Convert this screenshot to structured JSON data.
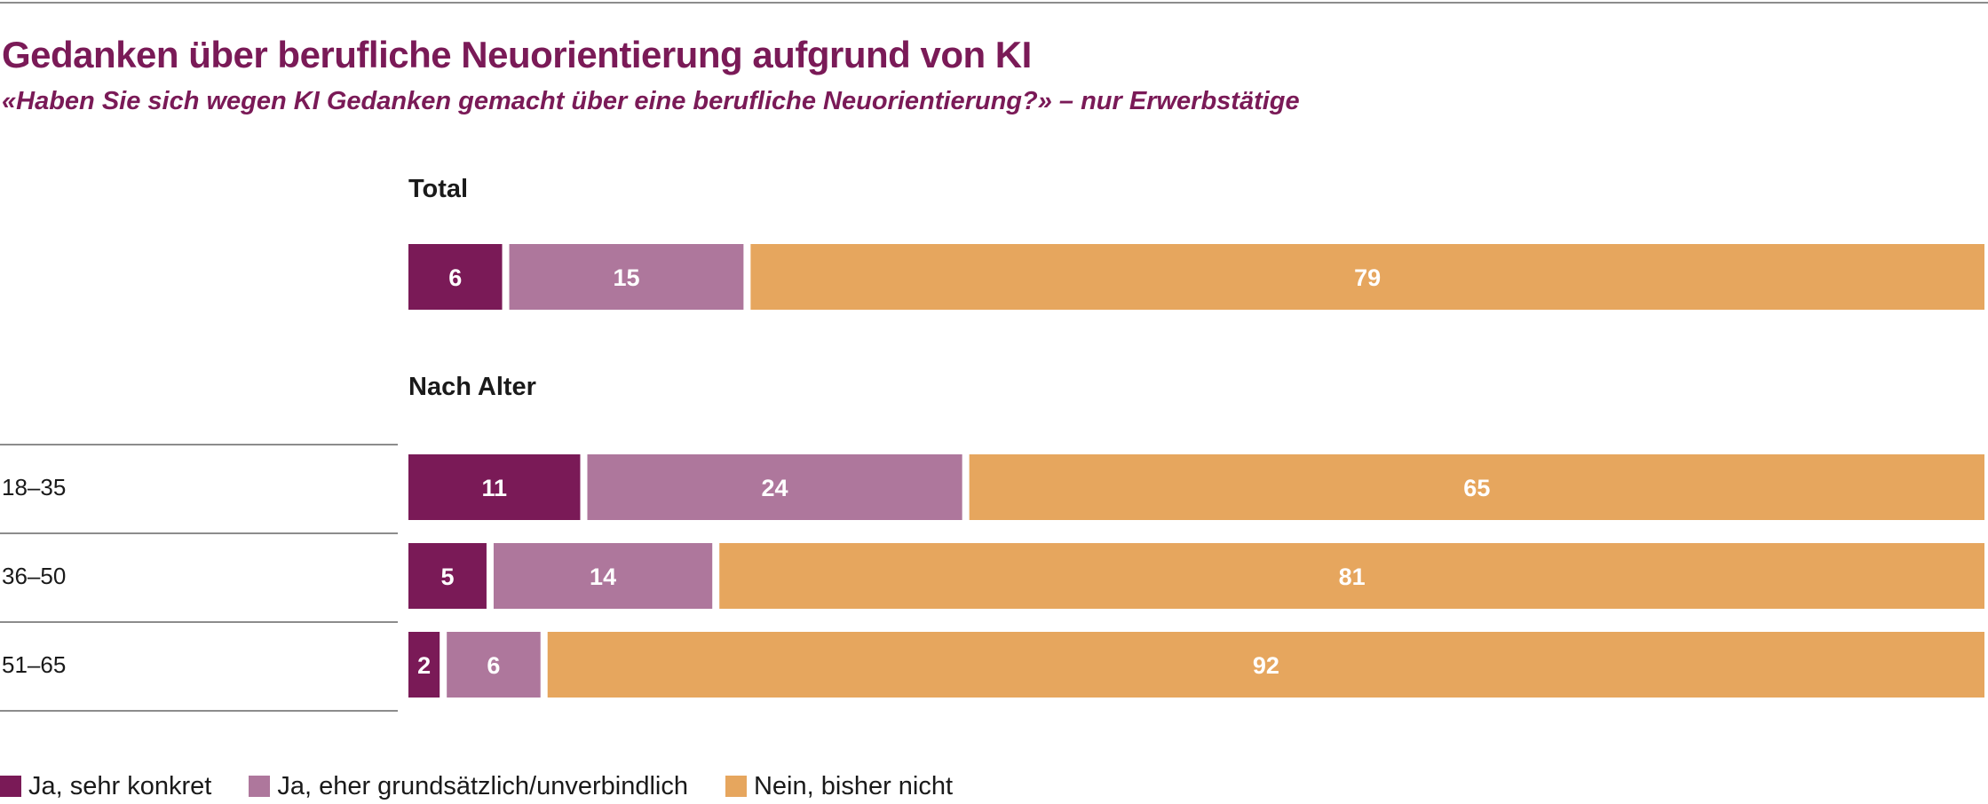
{
  "chart_data": {
    "type": "bar",
    "orientation": "horizontal",
    "stacked": true,
    "title": "Gedanken über berufliche Neuorientierung aufgrund von KI",
    "subtitle": "«Haben Sie sich wegen KI Gedanken gemacht über eine berufliche Neuorientierung?» – nur Erwerbstätige",
    "xlim": [
      0,
      100
    ],
    "grid": false,
    "legend_position": "bottom-left",
    "series": [
      {
        "name": "Ja, sehr konkret",
        "color": "#7a1a57"
      },
      {
        "name": "Ja, eher grundsätzlich/unverbindlich",
        "color": "#ae779c"
      },
      {
        "name": "Nein, bisher nicht",
        "color": "#e6a65e"
      }
    ],
    "groups": [
      {
        "label": "Total",
        "rows": [
          {
            "label": "",
            "values": [
              6,
              15,
              79
            ]
          }
        ]
      },
      {
        "label": "Nach Alter",
        "rows": [
          {
            "label": "18–35",
            "values": [
              11,
              24,
              65
            ]
          },
          {
            "label": "36–50",
            "values": [
              5,
              14,
              81
            ]
          },
          {
            "label": "51–65",
            "values": [
              2,
              6,
              92
            ]
          }
        ]
      }
    ]
  }
}
